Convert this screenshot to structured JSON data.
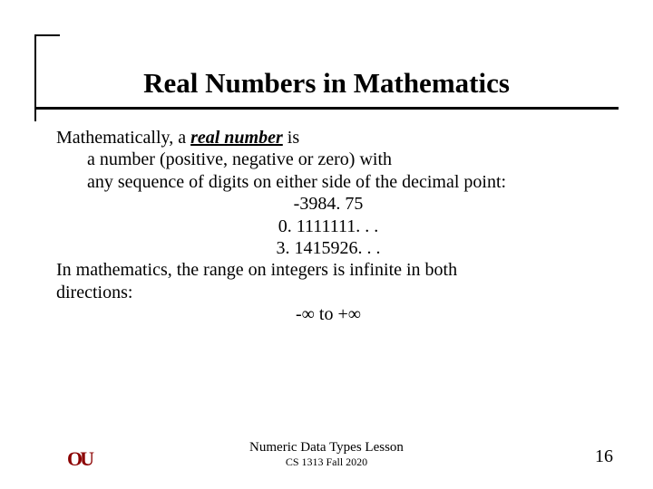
{
  "title": "Real Numbers in Mathematics",
  "body": {
    "intro_pre": "Mathematically, a ",
    "intro_term": "real number",
    "intro_post": " is",
    "def_line1": "a number (positive, negative or zero) with",
    "def_line2": "any sequence of digits on either side of the decimal point:",
    "example1": "-3984. 75",
    "example2": "0. 1111111. . .",
    "example3": "3. 1415926. . .",
    "range_line1": "In mathematics, the range on integers is infinite in both",
    "range_line2": "directions:",
    "range_expr": "-∞ to +∞"
  },
  "footer": {
    "lesson": "Numeric Data Types Lesson",
    "course": "CS 1313 Fall 2020",
    "page": "16"
  },
  "logo": {
    "text": "OU",
    "color": "#8b0000"
  },
  "colors": {
    "text": "#000000",
    "background": "#ffffff",
    "rule": "#000000"
  }
}
